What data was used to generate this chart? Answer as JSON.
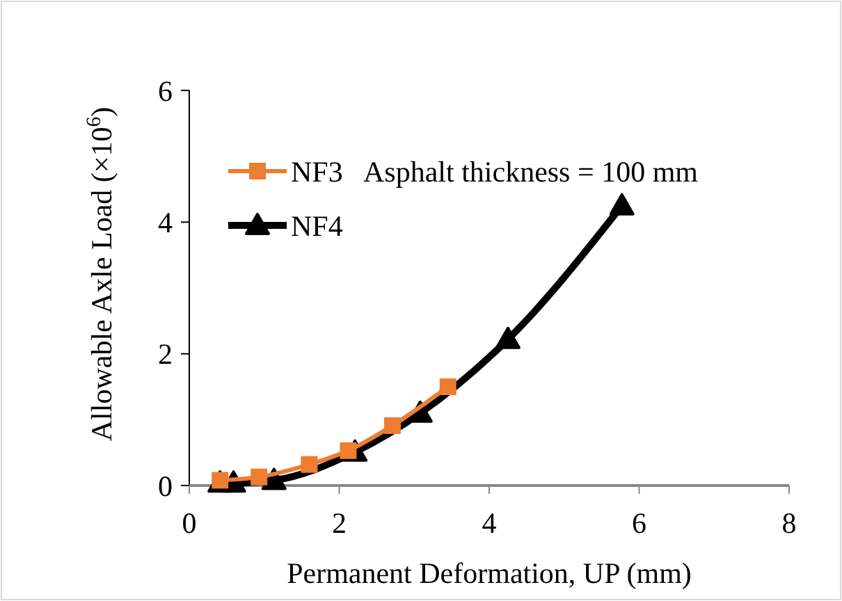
{
  "chart_data": {
    "type": "line",
    "xlabel": "Permanent Deformation, UP (mm)",
    "ylabel": "Allowable Axle Load (×10$^{6}$)",
    "annotations": [
      "Asphalt thickness = 100 mm"
    ],
    "xlim": [
      0,
      8
    ],
    "xticks": [
      0,
      2,
      4,
      6,
      8
    ],
    "ylim": [
      0,
      6
    ],
    "yticks": [
      0,
      2,
      4,
      6
    ],
    "grid": false,
    "legend": "top left",
    "series": [
      {
        "name": "NF3",
        "color": "#ed7d31",
        "marker": "square",
        "x": [
          0.41,
          0.93,
          1.6,
          2.12,
          2.71,
          3.45
        ],
        "values": [
          0.08,
          0.13,
          0.32,
          0.53,
          0.91,
          1.5
        ]
      },
      {
        "name": "NF4",
        "color": "#000000",
        "marker": "triangle",
        "x": [
          0.41,
          0.59,
          1.13,
          2.21,
          3.08,
          4.25,
          5.77
        ],
        "values": [
          0.04,
          0.04,
          0.08,
          0.51,
          1.1,
          2.22,
          4.25
        ]
      }
    ]
  }
}
